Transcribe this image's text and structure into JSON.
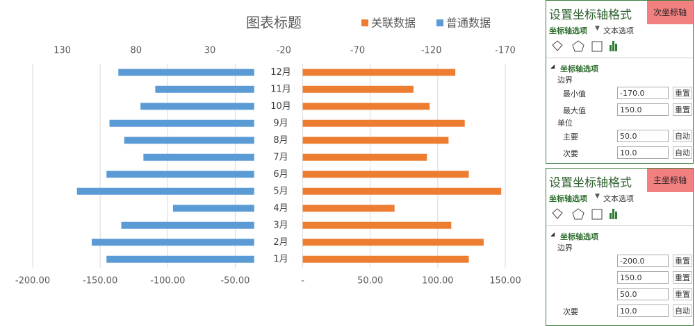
{
  "chart_data": {
    "type": "bar",
    "title": "图表标题",
    "categories": [
      "1月",
      "2月",
      "3月",
      "4月",
      "5月",
      "6月",
      "7月",
      "8月",
      "9月",
      "10月",
      "11月",
      "12月"
    ],
    "series": [
      {
        "name": "关联数据",
        "color": "#ed7d31",
        "values": [
          123,
          134,
          110,
          68,
          147,
          123,
          92,
          108,
          120,
          94,
          82,
          113
        ]
      },
      {
        "name": "普通数据",
        "color": "#5b9bd5",
        "axis": "x2",
        "values": [
          100,
          110,
          90,
          55,
          120,
          100,
          75,
          88,
          98,
          77,
          67,
          92
        ]
      }
    ],
    "xlim": [
      -200,
      150
    ],
    "xticks": [
      {
        "value": -200,
        "label": "-200.00"
      },
      {
        "value": -150,
        "label": "-150.00"
      },
      {
        "value": -100,
        "label": "-100.00"
      },
      {
        "value": -50,
        "label": "-50.00"
      },
      {
        "value": 0,
        "label": "-"
      },
      {
        "value": 50,
        "label": "50.00"
      },
      {
        "value": 100,
        "label": "100.00"
      },
      {
        "value": 150,
        "label": "150.00"
      }
    ],
    "x2lim": [
      150,
      -170
    ],
    "x2ticks": [
      130,
      80,
      30,
      -20,
      -70,
      -120,
      -170
    ],
    "grid": true
  },
  "panes": [
    {
      "title": "设置坐标轴格式",
      "tag": "次坐标轴",
      "tabs": [
        "坐标轴选项",
        "文本选项"
      ],
      "section": "坐标轴选项",
      "group": "边界",
      "rows": [
        {
          "label": "最小值",
          "value": "-170.0",
          "button": "重置"
        },
        {
          "label": "最大值",
          "value": "150.0",
          "button": "重置"
        }
      ],
      "group2": "单位",
      "rows2": [
        {
          "label": "主要",
          "value": "50.0",
          "button": "自动"
        },
        {
          "label": "次要",
          "value": "10.0",
          "button": "自动"
        }
      ]
    },
    {
      "title": "设置坐标轴格式",
      "tag": "主坐标轴",
      "tabs": [
        "坐标轴选项",
        "文本选项"
      ],
      "section": "坐标轴选项",
      "group": "边界",
      "rows": [
        {
          "value": "-200.0",
          "button": "重置"
        },
        {
          "value": "150.0",
          "button": "重置"
        },
        {
          "value": "50.0",
          "button": "重置"
        },
        {
          "label": "次要",
          "value": "10.0",
          "button": "自动"
        }
      ]
    }
  ]
}
